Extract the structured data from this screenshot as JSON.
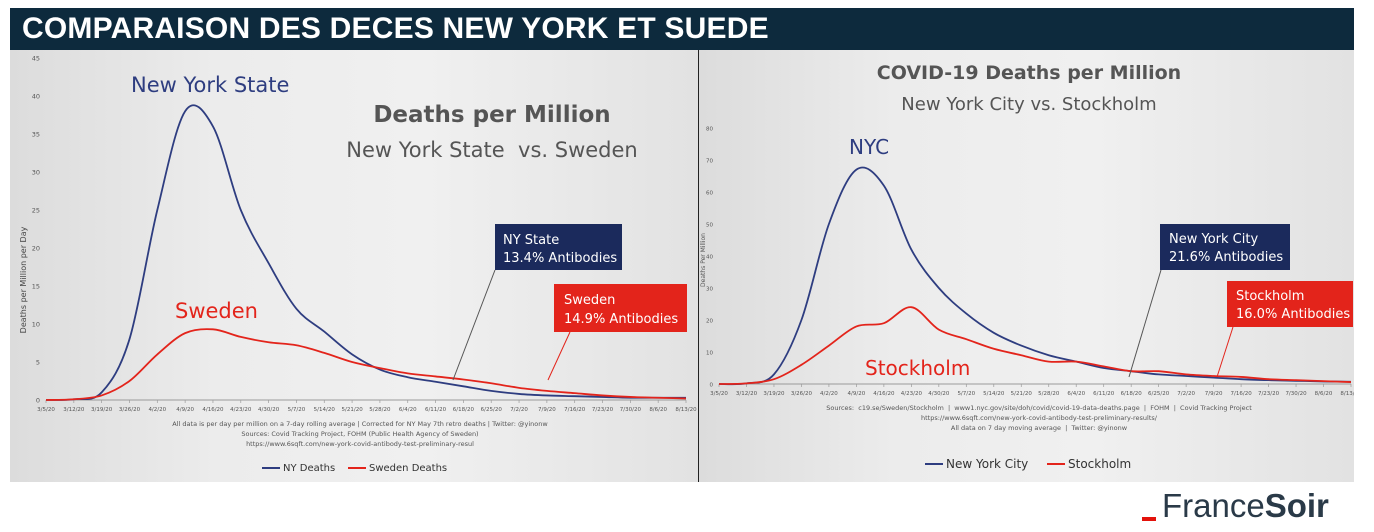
{
  "banner": {
    "title": "COMPARAISON DES DECES NEW YORK ET SUEDE"
  },
  "logo": {
    "part1": "France",
    "part2": "Soir"
  },
  "left_panel": {
    "title": "Deaths per Million",
    "subtitle": "New York State  vs. Sweden",
    "ylabel": "Deaths per Million per Day",
    "ny_label": "New York State",
    "sweden_label": "Sweden",
    "callout_ny": [
      "NY State",
      "13.4% Antibodies"
    ],
    "callout_se": [
      "Sweden",
      "14.9% Antibodies"
    ],
    "notes": [
      "All data is per day per million on a 7-day rolling average | Corrected for NY May 7th retro deaths | Twitter: @yinonw",
      "Sources: Covid Tracking Project, FOHM (Public Health Agency of Sweden)",
      "https://www.6sqft.com/new-york-covid-antibody-test-preliminary-resul"
    ],
    "legend": [
      "NY Deaths",
      "Sweden Deaths"
    ]
  },
  "right_panel": {
    "title": "COVID-19 Deaths per Million",
    "subtitle": "New York City vs. Stockholm",
    "ylabel": "Deaths Per Million",
    "nyc_label": "NYC",
    "stockholm_label": "Stockholm",
    "callout_nyc": [
      "New York City",
      "21.6% Antibodies"
    ],
    "callout_sth": [
      "Stockholm",
      "16.0% Antibodies"
    ],
    "notes": [
      "Sources:  c19.se/Sweden/Stockholm  |  www1.nyc.gov/site/doh/covid/covid-19-data-deaths.page  |  FOHM  |  Covid Tracking Project",
      "https://www.6sqft.com/new-york-covid-antibody-test-preliminary-results/",
      "All data on 7 day moving average  |  Twitter: @yinonw"
    ],
    "legend": [
      "New York City",
      "Stockholm"
    ]
  },
  "colors": {
    "ny": "#2e3d80",
    "sweden": "#e3241b",
    "navy_box": "#1b2a5c",
    "red_box": "#e3241b"
  },
  "chart_data": [
    {
      "type": "line",
      "title": "Deaths per Million",
      "subtitle": "New York State  vs. Sweden",
      "ylabel": "Deaths per Million per Day",
      "xlabel": "",
      "ylim": [
        0,
        45
      ],
      "yticks": [
        0,
        5,
        10,
        15,
        20,
        25,
        30,
        35,
        40,
        45
      ],
      "x": [
        "3/5/20",
        "3/12/20",
        "3/19/20",
        "3/26/20",
        "4/2/20",
        "4/9/20",
        "4/16/20",
        "4/23/20",
        "4/30/20",
        "5/7/20",
        "5/14/20",
        "5/21/20",
        "5/28/20",
        "6/4/20",
        "6/11/20",
        "6/18/20",
        "6/25/20",
        "7/2/20",
        "7/9/20",
        "7/16/20",
        "7/23/20",
        "7/30/20",
        "8/6/20",
        "8/13/20"
      ],
      "series": [
        {
          "name": "NY Deaths",
          "values": [
            0,
            0.1,
            1,
            8,
            25,
            38,
            36,
            25,
            18,
            12,
            9,
            6,
            4,
            3,
            2.4,
            1.8,
            1.2,
            0.8,
            0.6,
            0.5,
            0.4,
            0.3,
            0.3,
            0.3
          ]
        },
        {
          "name": "Sweden Deaths",
          "values": [
            0,
            0.1,
            0.6,
            2.5,
            6,
            8.8,
            9.3,
            8.3,
            7.6,
            7.2,
            6.2,
            5,
            4.2,
            3.5,
            3.1,
            2.7,
            2.2,
            1.6,
            1.2,
            0.9,
            0.6,
            0.4,
            0.3,
            0.2
          ]
        }
      ]
    },
    {
      "type": "line",
      "title": "COVID-19 Deaths per Million",
      "subtitle": "New York City vs. Stockholm",
      "ylabel": "Deaths Per Million",
      "xlabel": "",
      "ylim": [
        0,
        80
      ],
      "yticks": [
        0,
        10,
        20,
        30,
        40,
        50,
        60,
        70,
        80
      ],
      "x": [
        "3/5/20",
        "3/12/20",
        "3/19/20",
        "3/26/20",
        "4/2/20",
        "4/9/20",
        "4/16/20",
        "4/23/20",
        "4/30/20",
        "5/7/20",
        "5/14/20",
        "5/21/20",
        "5/28/20",
        "6/4/20",
        "6/11/20",
        "6/18/20",
        "6/25/20",
        "7/2/20",
        "7/9/20",
        "7/16/20",
        "7/23/20",
        "7/30/20",
        "8/6/20",
        "8/13/20"
      ],
      "series": [
        {
          "name": "New York City",
          "values": [
            0,
            0.2,
            3,
            20,
            50,
            67,
            62,
            42,
            30,
            22,
            16,
            12,
            9,
            7,
            5,
            4,
            3,
            2.5,
            2,
            1.5,
            1.2,
            1,
            0.8,
            0.7
          ]
        },
        {
          "name": "Stockholm",
          "values": [
            0,
            0.2,
            1.5,
            6,
            12,
            18,
            19,
            24,
            17,
            14,
            11,
            9,
            7,
            7,
            5.5,
            4,
            4,
            3,
            2.5,
            2.2,
            1.5,
            1.2,
            0.9,
            0.6
          ]
        }
      ]
    }
  ]
}
